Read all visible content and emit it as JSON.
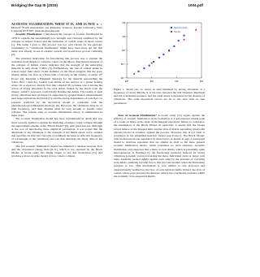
{
  "header": {
    "left": "Bridging the Gap III (2015)",
    "right": "1004.pdf"
  },
  "title": "ACOUSTIC FLUIDIZATION: WHAT IT IS, AND IS NOT.",
  "authors": "H. J. Melosh¹ ¹Earth Atmosphere and Planetary Sciences, Purdue University, West Lafayette IN 47907, jmelosh@purdue.edu",
  "left_column": [
    {
      "heading": "Acoustic Fluidization:",
      "text": "I introduced the concept of acoustic fluidization in 1979 to explain the astonishingly low strength and viscosity exhibited by the collapse of impact craters and the formation of central peaks in those craters [1]. The name I gave to this process was not well chosen for the geologic community; to \"vibrational fluidization\" might have been more apt but that name was already in use in another context and would have proven confusing [2]."
    },
    {
      "heading": "",
      "text": "The principal motivation for introducing this process was to explain the transition from simple to complex craters on the Moon. Mechanical analysis of the collapse of simple craters indicates that the strength of the underlying material is only about 3 MPa [3]. Furthermore, the rise of central peaks in craters larger than about 15 km diameter on the Moon suggests that the post-impact debris can flow as a fluid with a viscosity in the vicinity of about 10⁸ Pa-sec [4], implying a Bingham rheology for the material surrounding the crater. How could dry, broken rock debris on the surface of a planet lacking water, air or even ice, already flow like a liquid? My solution was to invoke the action of strong vibrations in the rock debris broken by the shock from the impact, which I proposed could briefly fluidize the debris. The reality of such strong vibrations near an impact is supported by ground motion measurements near large explosions and Earth [5], and the strong dependence of rock flow on pressure predicted by the theoretical model is consistent with the phenomenological Bingham rheology [6]. However, the vibrations must be of high frequency, and their lifetime must be long enough to permit crater collapse. The present state of acoustic fluidization theory is summarized in these notes."
    },
    {
      "heading": "",
      "text": "The acoustic fluidization model has been reformulated in detail and was more recently applied to multiscale modeling of impact crater collapse through the approximate scheme of the \"Block Model\" [8], with great success. Although at the root of introducing these empirical parameters, it was found that the amplitude of the vibrations to the strength of the initial shock wave, another that specifies an effective viscosity (a nominal) decrease as effective frequency of wavelength of the vibrations) and one that describes the decay time of the vibrations."
    },
    {
      "heading": "",
      "text": "The full acoustic fluidization model has inherited a relation between flow and the vibrational energy field [9-11], which is not captured by the Block Model. A recent study has finally begun to test this motivation [11] and provides a more accurate model of how craters collapse."
    }
  ],
  "figure": {
    "type": "scatter",
    "log_x": true,
    "log_y": true,
    "xlim": [
      1,
      1000
    ],
    "xticks": [
      {
        "value": 1,
        "label": "10⁰"
      },
      {
        "value": 10,
        "label": "10¹"
      },
      {
        "value": 100,
        "label": "10²"
      },
      {
        "value": 1000,
        "label": "10³"
      }
    ],
    "ylim": [
      0.01,
      100
    ],
    "yticks": [
      {
        "value": 0.01,
        "label": "10⁻²"
      },
      {
        "value": 0.1,
        "label": "10⁻¹"
      },
      {
        "value": 1,
        "label": "10⁰"
      },
      {
        "value": 10,
        "label": "10¹"
      },
      {
        "value": 100,
        "label": "10²"
      }
    ],
    "series": [
      {
        "name": "Melosh data",
        "color": "#2b4fd0",
        "x": [
          3,
          5,
          8,
          12,
          20,
          30,
          50,
          80,
          120,
          200
        ],
        "values": [
          0.03,
          0.05,
          0.08,
          0.15,
          0.3,
          0.5,
          1,
          2,
          5,
          12
        ]
      },
      {
        "name": "Model",
        "color": "#d02b2b",
        "x": [
          2,
          10,
          50,
          200,
          600
        ],
        "values": [
          0.02,
          0.12,
          0.9,
          6,
          30
        ]
      }
    ]
  },
  "caption": "Figure 1. Strain rate vs. stress in sand fluidized by strong vibrations at a frequency of about 300 Hz. Y is the ratio between the rms vibration amplitude and the overburden pressure, and the yield stress is measured in the absence of vibrations. The solid theoretical curves are fit to the data with no free parameters.",
  "right_column": [
    {
      "heading": "Tests of Acoustic Fluidization?",
      "text": "A recent study [12] argues against the efficacy of acoustic fluidization in the formation of a self-exposed central peak of a crater on Mars on the basis of the mapped exposures' failure to conform to the assumption of the Block Model. In particular, it asserts that the blocks would behave as the mapped units and the lack of matrix separating observable discrete blocks is evidence against the process. However, this is not what is postulated in the simplified heuristic model (see Ivanov). The Block Model, with its discrete blocks separated by thick layers of matrix is only a conceptual model to motivate equations that are similar in form to the more general acoustic fluidization model, which postulates no such structure. Acoustic fluidization only supposes that a mass of rock debris, which is potentially quite heterogeneous, is fluidized by the fluctuating pressures induced by strong vibrations (acoustic waves) traversing the mass. Individual clasts or larger rock units, normally packed tightly against each other by the pressure of overlying rock debris, suddenly become free to slip past one another when the fluctuating pressure is low. This mechanism is very similar to one proposed and observationally verified for the flow of rock debris in faults. Indeed, the flow of a mass whose pore pressure fluctuations relieve the overburden pressure within the normally close-supported matrix."
    }
  ]
}
